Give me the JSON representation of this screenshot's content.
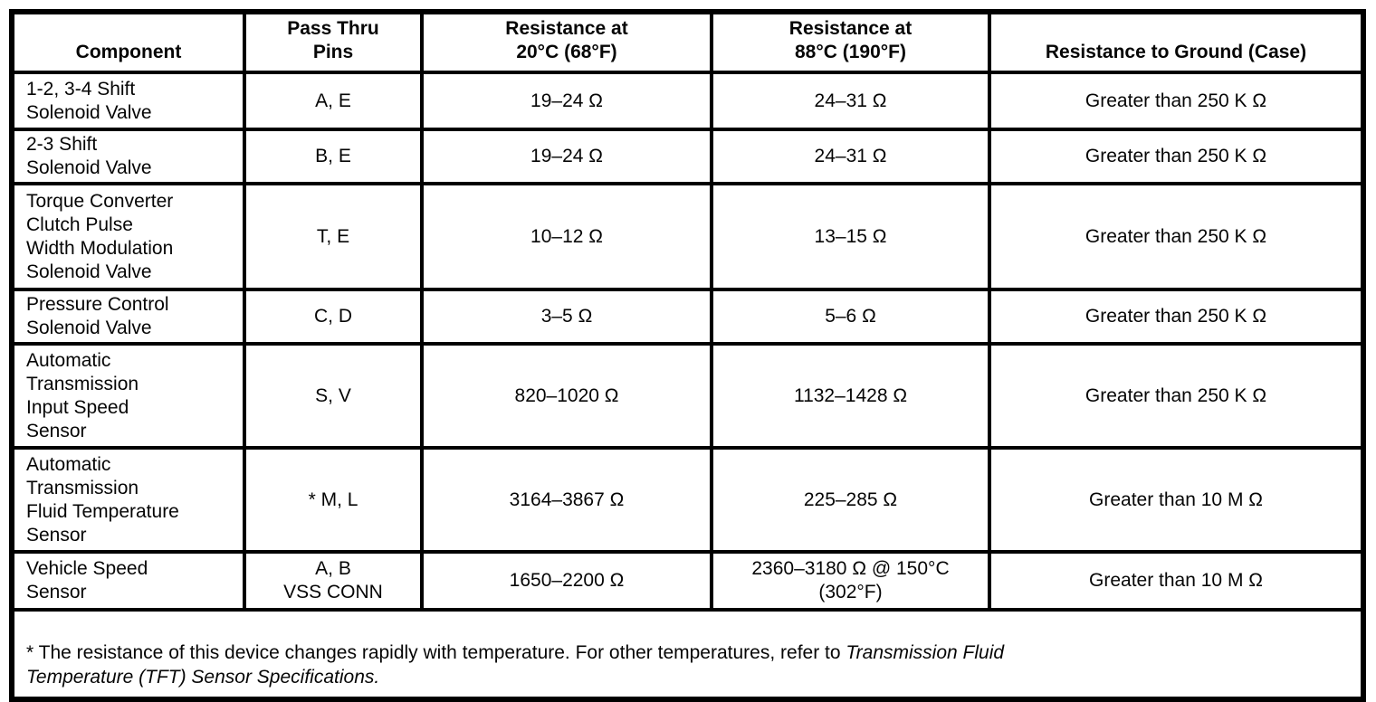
{
  "table": {
    "headers": [
      "Component",
      "Pass Thru\nPins",
      "Resistance at\n20°C (68°F)",
      "Resistance at\n88°C (190°F)",
      "Resistance to Ground (Case)"
    ],
    "rows": [
      {
        "component": "1-2, 3-4 Shift\nSolenoid Valve",
        "pins": "A, E",
        "resistance_20c": "19–24 Ω",
        "resistance_88c": "24–31 Ω",
        "resistance_to_ground": "Greater than 250 K Ω"
      },
      {
        "component": "2-3 Shift\nSolenoid Valve",
        "pins": "B, E",
        "resistance_20c": "19–24 Ω",
        "resistance_88c": "24–31 Ω",
        "resistance_to_ground": "Greater than 250 K Ω"
      },
      {
        "component": "Torque Converter\nClutch Pulse\nWidth Modulation\nSolenoid Valve",
        "pins": "T, E",
        "resistance_20c": "10–12 Ω",
        "resistance_88c": "13–15 Ω",
        "resistance_to_ground": "Greater than 250 K Ω"
      },
      {
        "component": "Pressure Control\nSolenoid Valve",
        "pins": "C, D",
        "resistance_20c": "3–5 Ω",
        "resistance_88c": "5–6 Ω",
        "resistance_to_ground": "Greater than 250 K Ω"
      },
      {
        "component": "Automatic\nTransmission\nInput Speed\nSensor",
        "pins": "S, V",
        "resistance_20c": "820–1020 Ω",
        "resistance_88c": "1132–1428 Ω",
        "resistance_to_ground": "Greater than 250 K Ω"
      },
      {
        "component": "Automatic\nTransmission\nFluid Temperature\nSensor",
        "pins": "* M, L",
        "resistance_20c": "3164–3867 Ω",
        "resistance_88c": "225–285 Ω",
        "resistance_to_ground": "Greater than 10 M Ω"
      },
      {
        "component": "Vehicle Speed\nSensor",
        "pins": "A, B\nVSS CONN",
        "resistance_20c": "1650–2200 Ω",
        "resistance_88c": "2360–3180 Ω @ 150°C\n(302°F)",
        "resistance_to_ground": "Greater than 10 M Ω"
      }
    ],
    "footnote": {
      "text": "* The resistance of this device changes rapidly with temperature. For other temperatures, refer to ",
      "reference": "Transmission Fluid\nTemperature (TFT) Sensor Specifications."
    },
    "colors": {
      "ink": "#060606",
      "paper": "#ffffff",
      "border": "#000000"
    }
  }
}
